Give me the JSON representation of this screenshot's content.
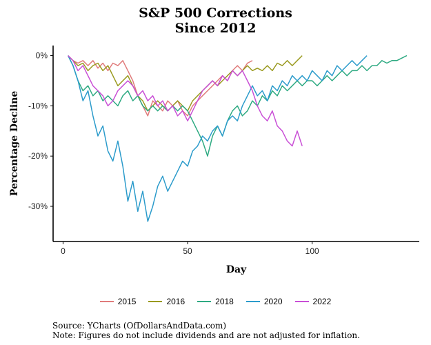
{
  "chart_data": {
    "type": "line",
    "title": [
      "S&P 500 Corrections",
      "Since 2012"
    ],
    "xlabel": "Day",
    "ylabel": "Percentage Decline",
    "xlim": [
      -4,
      143
    ],
    "ylim": [
      -37,
      2
    ],
    "x_ticks": [
      0,
      50,
      100
    ],
    "y_ticks": [
      0,
      -10,
      -20,
      -30
    ],
    "y_tick_labels": [
      "0%",
      "-10%",
      "-20%",
      "-30%"
    ],
    "grid": false,
    "legend_position": "bottom",
    "series": [
      {
        "name": "2015",
        "color": "#E07B7B",
        "points": [
          [
            2,
            0
          ],
          [
            4,
            -1
          ],
          [
            6,
            -1.5
          ],
          [
            8,
            -1
          ],
          [
            10,
            -2
          ],
          [
            12,
            -1
          ],
          [
            14,
            -2.5
          ],
          [
            16,
            -1.5
          ],
          [
            18,
            -3
          ],
          [
            20,
            -1.5
          ],
          [
            22,
            -2
          ],
          [
            24,
            -1
          ],
          [
            26,
            -3
          ],
          [
            28,
            -5
          ],
          [
            30,
            -8
          ],
          [
            32,
            -10
          ],
          [
            34,
            -12
          ],
          [
            36,
            -9
          ],
          [
            38,
            -10
          ],
          [
            40,
            -11
          ],
          [
            42,
            -9
          ],
          [
            44,
            -10
          ],
          [
            46,
            -9
          ],
          [
            48,
            -11
          ],
          [
            50,
            -12
          ],
          [
            52,
            -10
          ],
          [
            54,
            -9
          ],
          [
            56,
            -8
          ],
          [
            58,
            -7
          ],
          [
            60,
            -6
          ],
          [
            62,
            -5
          ],
          [
            64,
            -4
          ],
          [
            66,
            -5
          ],
          [
            68,
            -3
          ],
          [
            70,
            -2
          ],
          [
            72,
            -3
          ],
          [
            74,
            -1.5
          ],
          [
            76,
            -1
          ]
        ]
      },
      {
        "name": "2016",
        "color": "#9A9A1F",
        "points": [
          [
            2,
            0
          ],
          [
            4,
            -1
          ],
          [
            6,
            -2
          ],
          [
            8,
            -1.5
          ],
          [
            10,
            -3
          ],
          [
            12,
            -2
          ],
          [
            14,
            -1.5
          ],
          [
            16,
            -3
          ],
          [
            18,
            -2
          ],
          [
            20,
            -4
          ],
          [
            22,
            -6
          ],
          [
            24,
            -5
          ],
          [
            26,
            -4
          ],
          [
            28,
            -6
          ],
          [
            30,
            -8
          ],
          [
            32,
            -9
          ],
          [
            34,
            -11
          ],
          [
            36,
            -10
          ],
          [
            38,
            -9
          ],
          [
            40,
            -10
          ],
          [
            42,
            -11
          ],
          [
            44,
            -10
          ],
          [
            46,
            -9
          ],
          [
            48,
            -10
          ],
          [
            50,
            -11
          ],
          [
            52,
            -9
          ],
          [
            54,
            -8
          ],
          [
            56,
            -7
          ],
          [
            58,
            -6
          ],
          [
            60,
            -5
          ],
          [
            62,
            -6
          ],
          [
            64,
            -5
          ],
          [
            66,
            -4
          ],
          [
            68,
            -3
          ],
          [
            70,
            -4
          ],
          [
            72,
            -3
          ],
          [
            74,
            -2
          ],
          [
            76,
            -3
          ],
          [
            78,
            -2.5
          ],
          [
            80,
            -3
          ],
          [
            82,
            -2
          ],
          [
            84,
            -3
          ],
          [
            86,
            -1.5
          ],
          [
            88,
            -2
          ],
          [
            90,
            -1
          ],
          [
            92,
            -2
          ],
          [
            94,
            -1
          ],
          [
            96,
            0
          ]
        ]
      },
      {
        "name": "2018",
        "color": "#2EAA82",
        "points": [
          [
            2,
            0
          ],
          [
            4,
            -2
          ],
          [
            6,
            -5
          ],
          [
            8,
            -7
          ],
          [
            10,
            -6
          ],
          [
            12,
            -8
          ],
          [
            14,
            -7
          ],
          [
            16,
            -9
          ],
          [
            18,
            -8
          ],
          [
            20,
            -9
          ],
          [
            22,
            -10
          ],
          [
            24,
            -8
          ],
          [
            26,
            -7
          ],
          [
            28,
            -9
          ],
          [
            30,
            -8
          ],
          [
            32,
            -10
          ],
          [
            34,
            -11
          ],
          [
            36,
            -10
          ],
          [
            38,
            -11
          ],
          [
            40,
            -10
          ],
          [
            42,
            -11
          ],
          [
            44,
            -10
          ],
          [
            46,
            -11
          ],
          [
            48,
            -10
          ],
          [
            50,
            -11
          ],
          [
            52,
            -13
          ],
          [
            54,
            -15
          ],
          [
            56,
            -17
          ],
          [
            58,
            -20
          ],
          [
            60,
            -16
          ],
          [
            62,
            -14
          ],
          [
            64,
            -16
          ],
          [
            66,
            -13
          ],
          [
            68,
            -11
          ],
          [
            70,
            -10
          ],
          [
            72,
            -12
          ],
          [
            74,
            -11
          ],
          [
            76,
            -9
          ],
          [
            78,
            -10
          ],
          [
            80,
            -8
          ],
          [
            82,
            -9
          ],
          [
            84,
            -7
          ],
          [
            86,
            -8
          ],
          [
            88,
            -6
          ],
          [
            90,
            -7
          ],
          [
            92,
            -6
          ],
          [
            94,
            -5
          ],
          [
            96,
            -6
          ],
          [
            98,
            -5
          ],
          [
            100,
            -5
          ],
          [
            102,
            -6
          ],
          [
            104,
            -5
          ],
          [
            106,
            -4
          ],
          [
            108,
            -5
          ],
          [
            110,
            -4
          ],
          [
            112,
            -3
          ],
          [
            114,
            -4
          ],
          [
            116,
            -3
          ],
          [
            118,
            -3
          ],
          [
            120,
            -2
          ],
          [
            122,
            -3
          ],
          [
            124,
            -2
          ],
          [
            126,
            -2
          ],
          [
            128,
            -1
          ],
          [
            130,
            -1.5
          ],
          [
            132,
            -1
          ],
          [
            134,
            -1
          ],
          [
            136,
            -0.5
          ],
          [
            138,
            0
          ]
        ]
      },
      {
        "name": "2020",
        "color": "#2B9BCB",
        "points": [
          [
            2,
            0
          ],
          [
            4,
            -2
          ],
          [
            6,
            -5
          ],
          [
            8,
            -9
          ],
          [
            10,
            -7
          ],
          [
            12,
            -12
          ],
          [
            14,
            -16
          ],
          [
            16,
            -14
          ],
          [
            18,
            -19
          ],
          [
            20,
            -21
          ],
          [
            22,
            -17
          ],
          [
            24,
            -22
          ],
          [
            26,
            -29
          ],
          [
            28,
            -25
          ],
          [
            30,
            -31
          ],
          [
            32,
            -27
          ],
          [
            34,
            -33
          ],
          [
            36,
            -30
          ],
          [
            38,
            -26
          ],
          [
            40,
            -24
          ],
          [
            42,
            -27
          ],
          [
            44,
            -25
          ],
          [
            46,
            -23
          ],
          [
            48,
            -21
          ],
          [
            50,
            -22
          ],
          [
            52,
            -19
          ],
          [
            54,
            -18
          ],
          [
            56,
            -16
          ],
          [
            58,
            -17
          ],
          [
            60,
            -15
          ],
          [
            62,
            -14
          ],
          [
            64,
            -16
          ],
          [
            66,
            -13
          ],
          [
            68,
            -12
          ],
          [
            70,
            -13
          ],
          [
            72,
            -10
          ],
          [
            74,
            -8
          ],
          [
            76,
            -6
          ],
          [
            78,
            -8
          ],
          [
            80,
            -7
          ],
          [
            82,
            -9
          ],
          [
            84,
            -6
          ],
          [
            86,
            -7
          ],
          [
            88,
            -5
          ],
          [
            90,
            -6
          ],
          [
            92,
            -4
          ],
          [
            94,
            -5
          ],
          [
            96,
            -4
          ],
          [
            98,
            -5
          ],
          [
            100,
            -3
          ],
          [
            102,
            -4
          ],
          [
            104,
            -5
          ],
          [
            106,
            -3
          ],
          [
            108,
            -4
          ],
          [
            110,
            -2
          ],
          [
            112,
            -3
          ],
          [
            114,
            -2
          ],
          [
            116,
            -1
          ],
          [
            118,
            -2
          ],
          [
            120,
            -1
          ],
          [
            122,
            0
          ]
        ]
      },
      {
        "name": "2022",
        "color": "#C94FD6",
        "points": [
          [
            2,
            0
          ],
          [
            4,
            -1
          ],
          [
            6,
            -3
          ],
          [
            8,
            -2
          ],
          [
            10,
            -4
          ],
          [
            12,
            -6
          ],
          [
            14,
            -7
          ],
          [
            16,
            -8
          ],
          [
            18,
            -10
          ],
          [
            20,
            -9
          ],
          [
            22,
            -7
          ],
          [
            24,
            -6
          ],
          [
            26,
            -5
          ],
          [
            28,
            -6
          ],
          [
            30,
            -8
          ],
          [
            32,
            -7
          ],
          [
            34,
            -9
          ],
          [
            36,
            -8
          ],
          [
            38,
            -10
          ],
          [
            40,
            -9
          ],
          [
            42,
            -11
          ],
          [
            44,
            -10
          ],
          [
            46,
            -12
          ],
          [
            48,
            -11
          ],
          [
            50,
            -13
          ],
          [
            52,
            -11
          ],
          [
            54,
            -9
          ],
          [
            56,
            -7
          ],
          [
            58,
            -6
          ],
          [
            60,
            -5
          ],
          [
            62,
            -6
          ],
          [
            64,
            -4
          ],
          [
            66,
            -5
          ],
          [
            68,
            -3
          ],
          [
            70,
            -4
          ],
          [
            72,
            -3
          ],
          [
            74,
            -5
          ],
          [
            76,
            -7
          ],
          [
            78,
            -10
          ],
          [
            80,
            -12
          ],
          [
            82,
            -13
          ],
          [
            84,
            -11
          ],
          [
            86,
            -14
          ],
          [
            88,
            -15
          ],
          [
            90,
            -17
          ],
          [
            92,
            -18
          ],
          [
            94,
            -15
          ],
          [
            96,
            -18
          ]
        ]
      }
    ]
  },
  "source_lines": [
    "Source: YCharts (OfDollarsAndData.com)",
    "Note: Figures do not include dividends and are not adjusted for inflation."
  ]
}
